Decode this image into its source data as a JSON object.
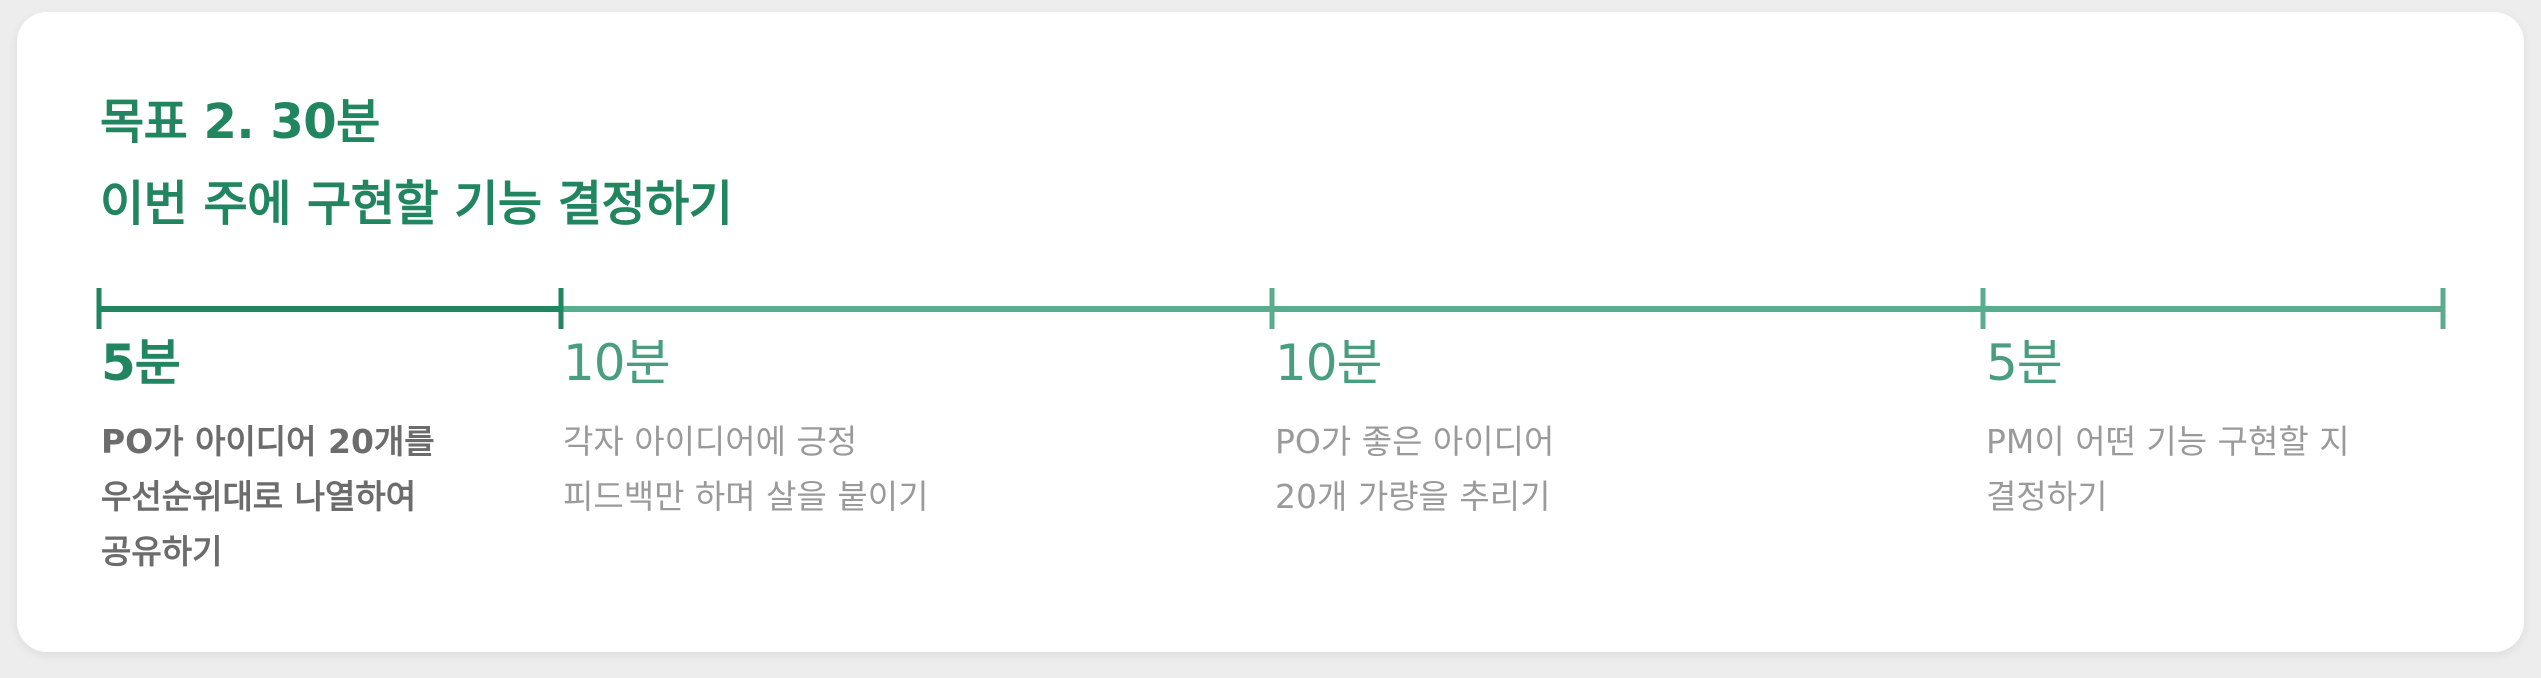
{
  "header": {
    "title_line1": "목표 2. 30분",
    "title_line2": "이번 주에 구현할 기능 결정하기"
  },
  "phases": [
    {
      "duration": "5분",
      "active": true,
      "lines": [
        "PO가 아이디어 20개를",
        "우선순위대로 나열하여",
        "공유하기"
      ]
    },
    {
      "duration": "10분",
      "active": false,
      "lines": [
        "각자 아이디어에 긍정",
        "피드백만 하며 살을 붙이기"
      ]
    },
    {
      "duration": "10분",
      "active": false,
      "lines": [
        "PO가 좋은 아이디어",
        "20개 가량을 추리기"
      ]
    },
    {
      "duration": "5분",
      "active": false,
      "lines": [
        "PM이 어떤 기능 구현할 지",
        "결정하기"
      ]
    }
  ],
  "colors": {
    "accent_dark": "#21865f",
    "accent_light": "#5aac8e",
    "text_active": "#6c6c6c",
    "text_muted": "#9a9a9a"
  }
}
